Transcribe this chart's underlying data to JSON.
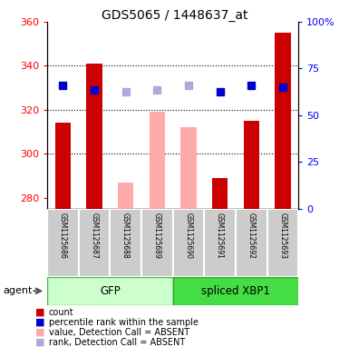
{
  "title": "GDS5065 / 1448637_at",
  "samples": [
    "GSM1125686",
    "GSM1125687",
    "GSM1125688",
    "GSM1125689",
    "GSM1125690",
    "GSM1125691",
    "GSM1125692",
    "GSM1125693"
  ],
  "count_values": [
    314,
    341,
    null,
    null,
    null,
    289,
    315,
    355
  ],
  "count_absent": [
    null,
    null,
    287,
    319,
    312,
    null,
    null,
    null
  ],
  "rank_present": [
    331,
    329,
    null,
    null,
    null,
    328,
    331,
    330
  ],
  "rank_absent": [
    null,
    null,
    328,
    329,
    331,
    null,
    null,
    null
  ],
  "ymin": 275,
  "ymax": 360,
  "yticks_left": [
    280,
    300,
    320,
    340,
    360
  ],
  "yticks_right": [
    0,
    25,
    50,
    75,
    100
  ],
  "ytick_right_labels": [
    "0",
    "25",
    "50",
    "75",
    "100%"
  ],
  "grid_lines": [
    300,
    320,
    340
  ],
  "color_count_present": "#cc0000",
  "color_count_absent": "#ffaaaa",
  "color_rank_present": "#0000cc",
  "color_rank_absent": "#aaaadd",
  "bar_width": 0.5,
  "marker_size": 6,
  "gfp_light": "#ccffcc",
  "gfp_dark": "#44dd44",
  "xbp_light": "#44dd44",
  "xbp_dark": "#22bb22",
  "gray_box": "#cccccc",
  "white": "#ffffff",
  "legend_items": [
    {
      "label": "count",
      "color": "#cc0000"
    },
    {
      "label": "percentile rank within the sample",
      "color": "#0000cc"
    },
    {
      "label": "value, Detection Call = ABSENT",
      "color": "#ffaaaa"
    },
    {
      "label": "rank, Detection Call = ABSENT",
      "color": "#aaaadd"
    }
  ]
}
